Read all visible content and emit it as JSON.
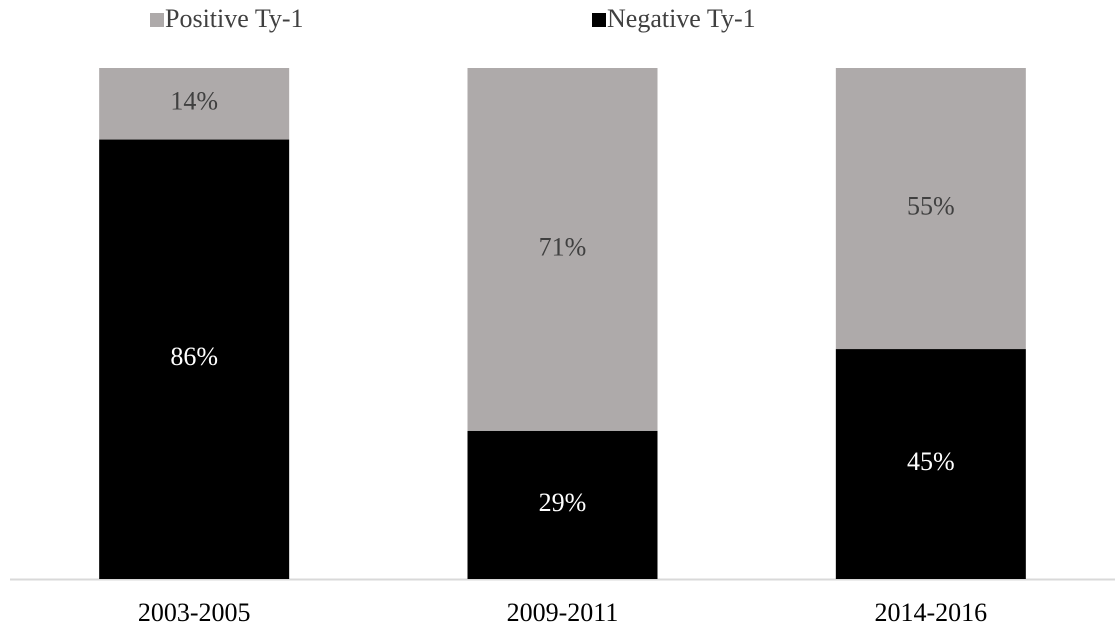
{
  "chart_data": {
    "type": "stacked_bar",
    "categories": [
      "2003-2005",
      "2009-2011",
      "2014-2016"
    ],
    "series": [
      {
        "name": "Negative Ty-1",
        "color": "#000000",
        "label_color": "#ffffff",
        "values": [
          86,
          29,
          45
        ],
        "value_labels": [
          "86%",
          "29%",
          "45%"
        ]
      },
      {
        "name": "Positive Ty-1",
        "color": "#aeaaaa",
        "label_color": "#404040",
        "values": [
          14,
          71,
          55
        ],
        "value_labels": [
          "14%",
          "71%",
          "55%"
        ]
      }
    ],
    "ylim": [
      0,
      100
    ],
    "legend": "top"
  }
}
